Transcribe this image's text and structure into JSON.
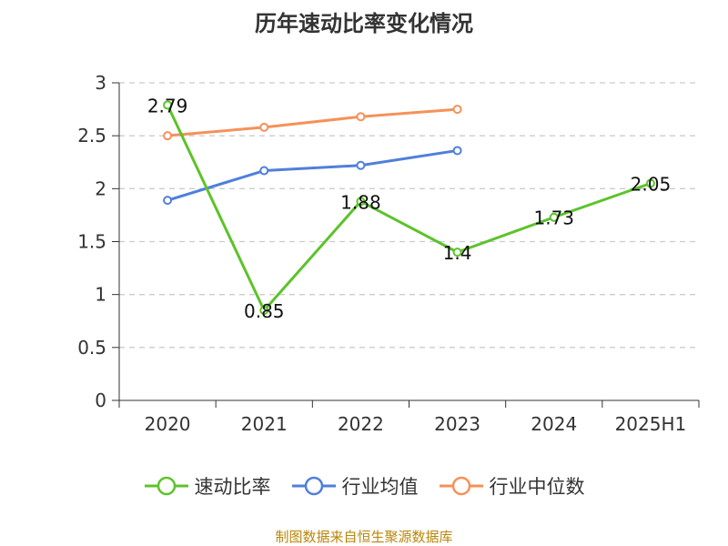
{
  "title": "历年速动比率变化情况",
  "source": "制图数据来自恒生聚源数据库",
  "chart_data": {
    "type": "line",
    "categories": [
      "2020",
      "2021",
      "2022",
      "2023",
      "2024",
      "2025H1"
    ],
    "ylim": [
      0,
      3
    ],
    "yticks": [
      "0",
      "0.5",
      "1",
      "1.5",
      "2",
      "2.5",
      "3"
    ],
    "grid": true,
    "legend_position": "bottom",
    "series": [
      {
        "name": "速动比率",
        "color": "#5cc32a",
        "values": [
          2.79,
          0.85,
          1.88,
          1.4,
          1.73,
          2.05
        ],
        "labels": [
          "2.79",
          "0.85",
          "1.88",
          "1.4",
          "1.73",
          "2.05"
        ],
        "show_labels": true
      },
      {
        "name": "行业均值",
        "color": "#4f7fdb",
        "values": [
          1.89,
          2.17,
          2.22,
          2.36,
          null,
          null
        ],
        "show_labels": false
      },
      {
        "name": "行业中位数",
        "color": "#f5915a",
        "values": [
          2.5,
          2.58,
          2.68,
          2.75,
          null,
          null
        ],
        "show_labels": false
      }
    ]
  }
}
